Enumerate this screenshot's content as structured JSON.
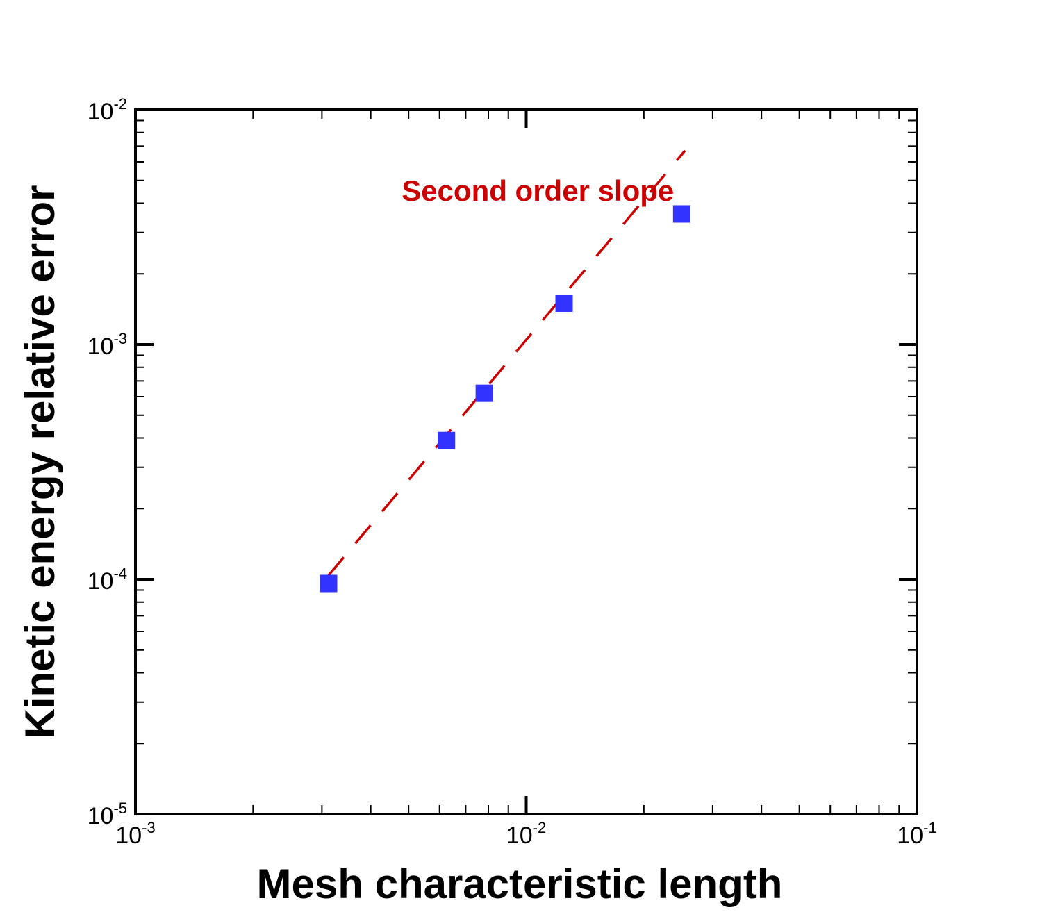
{
  "chart_data": {
    "type": "scatter",
    "title": "",
    "xlabel": "Mesh characteristic length",
    "ylabel": "Kinetic energy relative error",
    "xscale": "log",
    "yscale": "log",
    "xlim": [
      0.001,
      0.1
    ],
    "ylim": [
      1e-05,
      0.01
    ],
    "grid": false,
    "x_ticks": [
      {
        "value": 0.001,
        "base": "10",
        "exp": "-3"
      },
      {
        "value": 0.01,
        "base": "10",
        "exp": "-2"
      },
      {
        "value": 0.1,
        "base": "10",
        "exp": "-1"
      }
    ],
    "y_ticks": [
      {
        "value": 1e-05,
        "base": "10",
        "exp": "-5"
      },
      {
        "value": 0.0001,
        "base": "10",
        "exp": "-4"
      },
      {
        "value": 0.001,
        "base": "10",
        "exp": "-3"
      },
      {
        "value": 0.01,
        "base": "10",
        "exp": "-2"
      }
    ],
    "series": [
      {
        "marker": "square",
        "color": "#3333ff",
        "points": [
          {
            "x": 0.00312,
            "y": 9.6e-05
          },
          {
            "x": 0.00625,
            "y": 0.00039
          },
          {
            "x": 0.00781,
            "y": 0.00062
          },
          {
            "x": 0.0125,
            "y": 0.0015
          },
          {
            "x": 0.025,
            "y": 0.0036
          }
        ]
      }
    ],
    "reference_line": {
      "style": "dashed",
      "color": "#cc0000",
      "slope": 2,
      "x": [
        0.00312,
        0.0255
      ],
      "y": [
        0.000104,
        0.0067
      ]
    },
    "annotations": [
      {
        "text": "Second order slope",
        "color": "#cc0000",
        "x": 0.0048,
        "y": 0.0045
      }
    ]
  }
}
